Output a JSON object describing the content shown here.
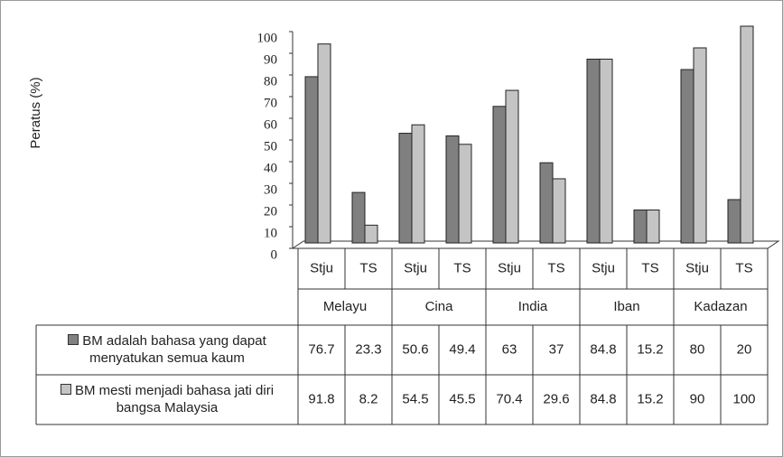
{
  "chart_data": {
    "type": "bar",
    "y_label": "Peratus (%)",
    "categories": [
      "Stju",
      "TS",
      "Stju",
      "TS",
      "Stju",
      "TS",
      "Stju",
      "TS",
      "Stju",
      "TS"
    ],
    "groups": [
      "Melayu",
      "Cina",
      "India",
      "Iban",
      "Kadazan"
    ],
    "series": [
      {
        "name": "BM adalah bahasa yang dapat menyatukan semua kaum",
        "color": "#808080",
        "values": [
          76.7,
          23.3,
          50.6,
          49.4,
          63,
          37,
          84.8,
          15.2,
          80,
          20
        ]
      },
      {
        "name": "BM mesti menjadi bahasa jati diri bangsa Malaysia",
        "color": "#c4c4c4",
        "values": [
          91.8,
          8.2,
          54.5,
          45.5,
          70.4,
          29.6,
          84.8,
          15.2,
          90,
          100
        ]
      }
    ],
    "ylim": [
      0,
      100
    ],
    "yticks": [
      0,
      10,
      20,
      30,
      40,
      50,
      60,
      70,
      80,
      90,
      100
    ]
  }
}
